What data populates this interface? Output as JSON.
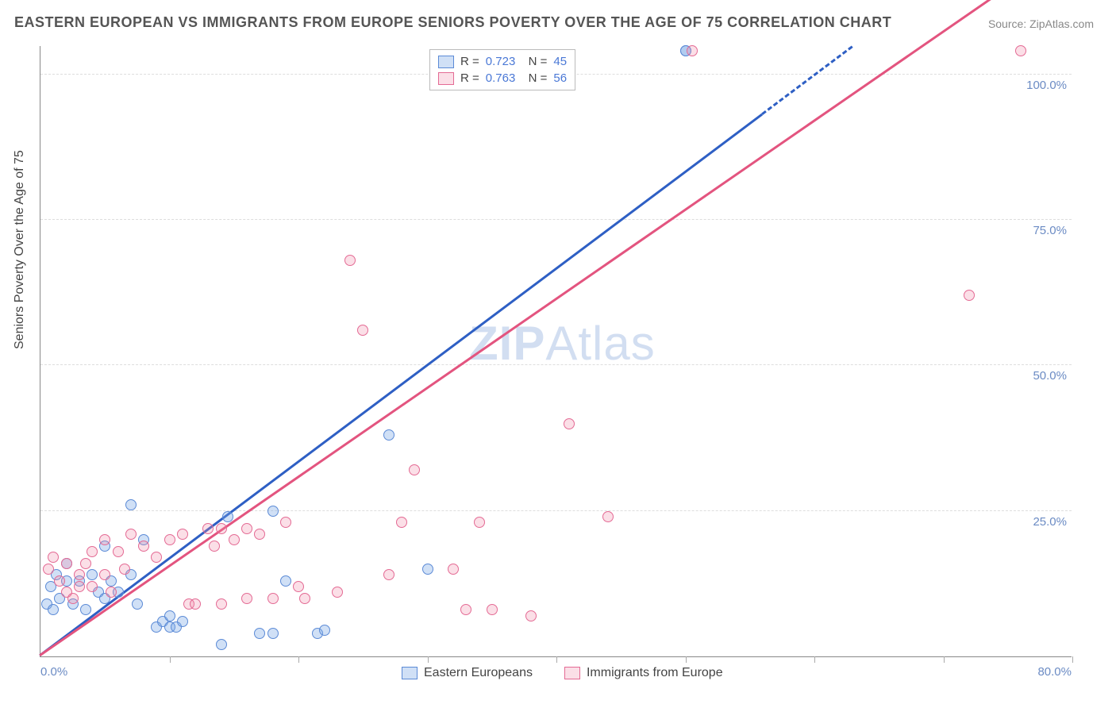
{
  "title": "EASTERN EUROPEAN VS IMMIGRANTS FROM EUROPE SENIORS POVERTY OVER THE AGE OF 75 CORRELATION CHART",
  "source": "Source: ZipAtlas.com",
  "watermark": "ZIPAtlas",
  "axis": {
    "y_title": "Seniors Poverty Over the Age of 75",
    "x_min_label": "0.0%",
    "x_max_label": "80.0%",
    "xlim": [
      0,
      80
    ],
    "ylim": [
      0,
      105
    ],
    "x_ticks": [
      10,
      20,
      30,
      40,
      50,
      60,
      70,
      80
    ],
    "y_gridlines": [
      {
        "v": 25,
        "label": "25.0%"
      },
      {
        "v": 50,
        "label": "50.0%"
      },
      {
        "v": 75,
        "label": "75.0%"
      },
      {
        "v": 100,
        "label": "100.0%"
      }
    ]
  },
  "series": [
    {
      "name": "Eastern Europeans",
      "fill": "rgba(120,165,230,0.35)",
      "stroke": "#5b8ad6",
      "line_color": "#2e5fc4",
      "r_value": "0.723",
      "n_value": "45",
      "marker_radius": 7,
      "regression": {
        "slope": 1.66,
        "intercept": 0,
        "solid_xmax": 56,
        "dashed_xmax": 63
      },
      "points": [
        [
          0.5,
          9
        ],
        [
          0.8,
          12
        ],
        [
          1,
          8
        ],
        [
          1.2,
          14
        ],
        [
          1.5,
          10
        ],
        [
          2,
          13
        ],
        [
          2,
          16
        ],
        [
          2.5,
          9
        ],
        [
          3,
          13
        ],
        [
          3.5,
          8
        ],
        [
          4,
          14
        ],
        [
          4.5,
          11
        ],
        [
          5,
          10
        ],
        [
          5,
          19
        ],
        [
          5.5,
          13
        ],
        [
          6,
          11
        ],
        [
          7,
          14
        ],
        [
          7,
          26
        ],
        [
          7.5,
          9
        ],
        [
          8,
          20
        ],
        [
          9,
          5
        ],
        [
          9.5,
          6
        ],
        [
          10,
          5
        ],
        [
          10,
          7
        ],
        [
          10.5,
          5
        ],
        [
          11,
          6
        ],
        [
          14,
          2
        ],
        [
          14.5,
          24
        ],
        [
          17,
          4
        ],
        [
          18,
          25
        ],
        [
          18,
          4
        ],
        [
          19,
          13
        ],
        [
          21.5,
          4
        ],
        [
          22,
          4.5
        ],
        [
          27,
          38
        ],
        [
          30,
          15
        ],
        [
          50,
          104
        ],
        [
          50,
          104
        ]
      ]
    },
    {
      "name": "Immigrants from Europe",
      "fill": "rgba(240,140,170,0.28)",
      "stroke": "#e46a94",
      "line_color": "#e3547f",
      "r_value": "0.763",
      "n_value": "56",
      "marker_radius": 7,
      "regression": {
        "slope": 1.53,
        "intercept": 0,
        "solid_xmax": 80,
        "dashed_xmax": 80
      },
      "points": [
        [
          0.6,
          15
        ],
        [
          1,
          17
        ],
        [
          1.5,
          13
        ],
        [
          2,
          11
        ],
        [
          2,
          16
        ],
        [
          2.5,
          10
        ],
        [
          3,
          14
        ],
        [
          3,
          12
        ],
        [
          3.5,
          16
        ],
        [
          4,
          12
        ],
        [
          4,
          18
        ],
        [
          5,
          14
        ],
        [
          5,
          20
        ],
        [
          5.5,
          11
        ],
        [
          6,
          18
        ],
        [
          6.5,
          15
        ],
        [
          7,
          21
        ],
        [
          8,
          19
        ],
        [
          9,
          17
        ],
        [
          10,
          20
        ],
        [
          11,
          21
        ],
        [
          11.5,
          9
        ],
        [
          12,
          9
        ],
        [
          13,
          22
        ],
        [
          13.5,
          19
        ],
        [
          14,
          9
        ],
        [
          14,
          22
        ],
        [
          15,
          20
        ],
        [
          16,
          22
        ],
        [
          16,
          10
        ],
        [
          17,
          21
        ],
        [
          18,
          10
        ],
        [
          19,
          23
        ],
        [
          20,
          12
        ],
        [
          20.5,
          10
        ],
        [
          23,
          11
        ],
        [
          24,
          68
        ],
        [
          25,
          56
        ],
        [
          27,
          14
        ],
        [
          28,
          23
        ],
        [
          29,
          32
        ],
        [
          32,
          15
        ],
        [
          33,
          8
        ],
        [
          34,
          23
        ],
        [
          35,
          8
        ],
        [
          38,
          7
        ],
        [
          41,
          40
        ],
        [
          44,
          24
        ],
        [
          50.5,
          104
        ],
        [
          72,
          62
        ],
        [
          76,
          104
        ]
      ]
    }
  ],
  "legend_bottom": [
    {
      "swatch_fill": "rgba(120,165,230,0.35)",
      "swatch_stroke": "#5b8ad6",
      "label": "Eastern Europeans"
    },
    {
      "swatch_fill": "rgba(240,140,170,0.28)",
      "swatch_stroke": "#e46a94",
      "label": "Immigrants from Europe"
    }
  ]
}
